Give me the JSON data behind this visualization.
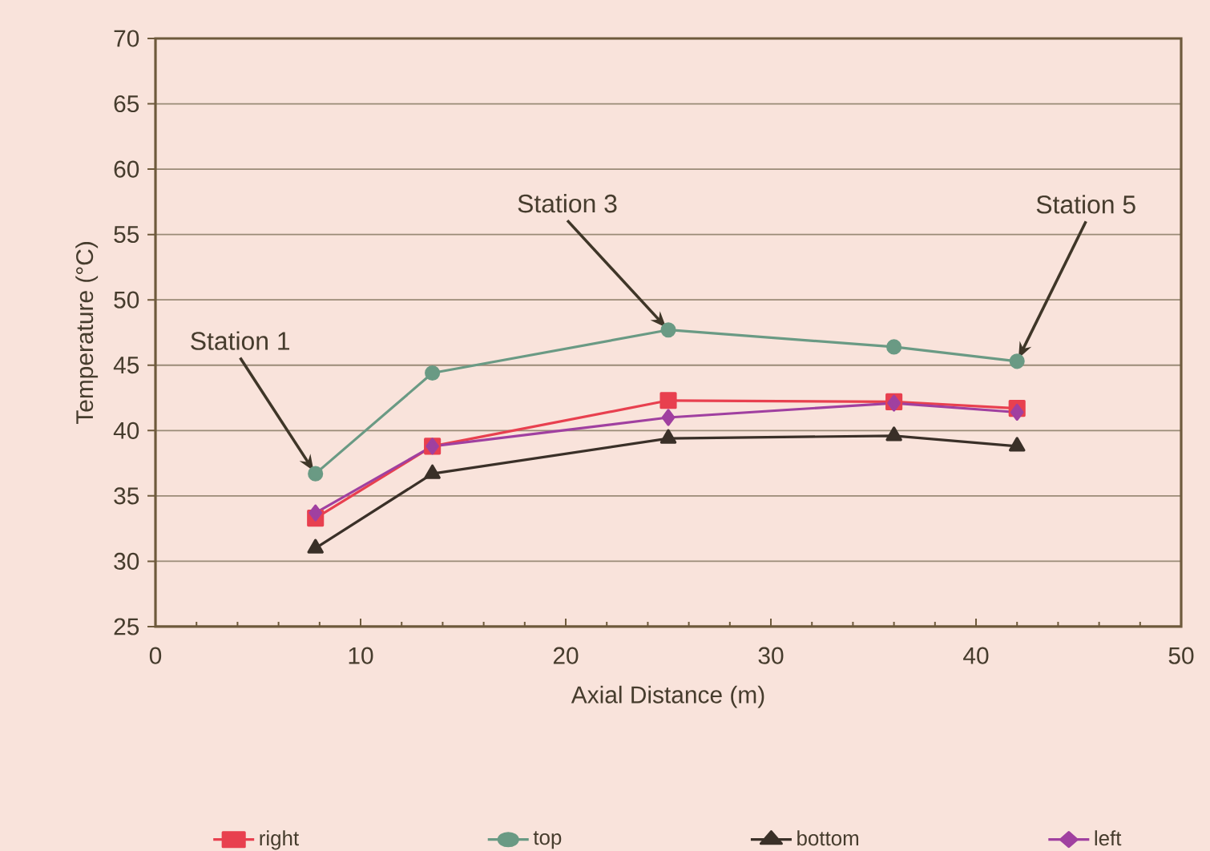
{
  "chart_data": {
    "type": "line",
    "xlabel": "Axial Distance (m)",
    "ylabel": "Temperature (°C)",
    "x": [
      7.8,
      13.5,
      25,
      36,
      42
    ],
    "series": [
      {
        "name": "right",
        "color": "#e8404f",
        "marker": "square",
        "values": [
          33.3,
          38.8,
          42.3,
          42.2,
          41.7
        ]
      },
      {
        "name": "top",
        "color": "#6a9a84",
        "marker": "circle",
        "values": [
          36.7,
          44.4,
          47.7,
          46.4,
          45.3
        ]
      },
      {
        "name": "bottom",
        "color": "#3a3028",
        "marker": "triangle",
        "values": [
          31.0,
          36.7,
          39.4,
          39.6,
          38.8
        ]
      },
      {
        "name": "left",
        "color": "#a040a0",
        "marker": "diamond",
        "values": [
          33.7,
          38.8,
          41.0,
          42.1,
          41.4
        ]
      }
    ],
    "xlim": [
      0,
      50
    ],
    "ylim": [
      25,
      70
    ],
    "xticks": [
      0,
      10,
      20,
      30,
      40,
      50
    ],
    "yticks": [
      25,
      30,
      35,
      40,
      45,
      50,
      55,
      60,
      65,
      70
    ],
    "grid": "y",
    "legend": "bottom",
    "line_style": "solid",
    "annotations": [
      {
        "text": "Station 1",
        "x": 7.8,
        "y": 36.7
      },
      {
        "text": "Station 3",
        "x": 25,
        "y": 47.7
      },
      {
        "text": "Station 5",
        "x": 42,
        "y": 45.3
      }
    ]
  }
}
